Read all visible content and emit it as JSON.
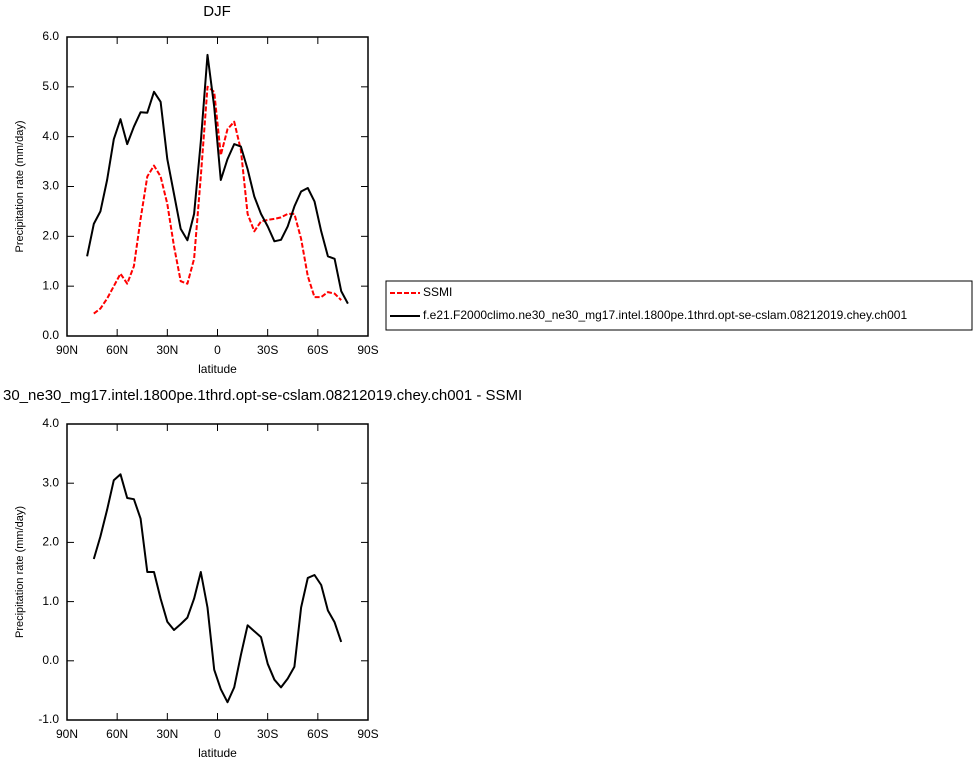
{
  "chart_data": [
    {
      "type": "line",
      "title": "DJF",
      "x_label": "latitude",
      "y_label": "Precipitation rate (mm/day)",
      "x": [
        78,
        74,
        70,
        66,
        62,
        58,
        54,
        50,
        46,
        42,
        38,
        34,
        30,
        26,
        22,
        18,
        14,
        10,
        6,
        2,
        -2,
        -6,
        -10,
        -14,
        -18,
        -22,
        -26,
        -30,
        -34,
        -38,
        -42,
        -46,
        -50,
        -54,
        -58,
        -62,
        -66,
        -70,
        -74,
        -78
      ],
      "series": [
        {
          "name": "SSMI",
          "color": "#ff0000",
          "line_style": "dashed",
          "values": [
            null,
            0.45,
            0.55,
            0.75,
            1.0,
            1.25,
            1.05,
            1.4,
            2.35,
            3.2,
            3.42,
            3.2,
            2.65,
            1.8,
            1.1,
            1.05,
            1.55,
            3.2,
            5.0,
            4.9,
            3.63,
            4.15,
            4.3,
            3.73,
            2.45,
            2.1,
            2.3,
            2.33,
            2.35,
            2.38,
            2.45,
            2.45,
            1.95,
            1.2,
            0.78,
            0.78,
            0.88,
            0.85,
            0.72,
            null
          ]
        },
        {
          "name": "f.e21.F2000climo.ne30_ne30_mg17.intel.1800pe.1thrd.opt-se-cslam.08212019.chey.ch001",
          "color": "#000000",
          "line_style": "solid",
          "values": [
            1.6,
            2.25,
            2.5,
            3.13,
            3.95,
            4.35,
            3.85,
            4.2,
            4.49,
            4.48,
            4.9,
            4.7,
            3.55,
            2.85,
            2.15,
            1.92,
            2.45,
            3.9,
            5.64,
            4.6,
            3.13,
            3.55,
            3.85,
            3.8,
            3.35,
            2.8,
            2.45,
            2.2,
            1.9,
            1.93,
            2.2,
            2.6,
            2.9,
            2.97,
            2.7,
            2.1,
            1.6,
            1.55,
            0.9,
            0.65
          ]
        }
      ],
      "xlim": [
        90,
        -90
      ],
      "xticks": [
        {
          "value": 90,
          "label": "90N"
        },
        {
          "value": 60,
          "label": "60N"
        },
        {
          "value": 30,
          "label": "30N"
        },
        0,
        {
          "value": -30,
          "label": "30S"
        },
        {
          "value": -60,
          "label": "60S"
        },
        {
          "value": -90,
          "label": "90S"
        }
      ],
      "ylim": [
        0,
        6
      ],
      "yticks": [
        {
          "value": 0,
          "label": "0.0"
        },
        {
          "value": 1,
          "label": "1.0"
        },
        {
          "value": 2,
          "label": "2.0"
        },
        {
          "value": 3,
          "label": "3.0"
        },
        {
          "value": 4,
          "label": "4.0"
        },
        {
          "value": 5,
          "label": "5.0"
        },
        {
          "value": 6,
          "label": "6.0"
        }
      ],
      "legend": "right"
    },
    {
      "type": "line",
      "title": "30_ne30_mg17.intel.1800pe.1thrd.opt-se-cslam.08212019.chey.ch001 - SSMI",
      "x_label": "latitude",
      "y_label": "Precipitation rate (mm/day)",
      "x": [
        78,
        74,
        70,
        66,
        62,
        58,
        54,
        50,
        46,
        42,
        38,
        34,
        30,
        26,
        22,
        18,
        14,
        10,
        6,
        2,
        -2,
        -6,
        -10,
        -14,
        -18,
        -22,
        -26,
        -30,
        -34,
        -38,
        -42,
        -46,
        -50,
        -54,
        -58,
        -62,
        -66,
        -70,
        -74,
        -78
      ],
      "color": "#000000",
      "values": [
        null,
        1.72,
        2.1,
        2.55,
        3.05,
        3.15,
        2.75,
        2.73,
        2.4,
        1.5,
        1.5,
        1.05,
        0.66,
        0.52,
        0.62,
        0.73,
        1.05,
        1.5,
        0.9,
        -0.15,
        -0.48,
        -0.7,
        -0.45,
        0.1,
        0.6,
        0.5,
        0.4,
        -0.05,
        -0.32,
        -0.45,
        -0.3,
        -0.1,
        0.9,
        1.4,
        1.45,
        1.28,
        0.85,
        0.65,
        0.32,
        null
      ],
      "xlim": [
        90,
        -90
      ],
      "xticks": [
        {
          "value": 90,
          "label": "90N"
        },
        {
          "value": 60,
          "label": "60N"
        },
        {
          "value": 30,
          "label": "30N"
        },
        0,
        {
          "value": -30,
          "label": "30S"
        },
        {
          "value": -60,
          "label": "60S"
        },
        {
          "value": -90,
          "label": "90S"
        }
      ],
      "ylim": [
        -1,
        4
      ],
      "yticks": [
        {
          "value": -1,
          "label": "-1.0"
        },
        {
          "value": 0,
          "label": "0.0"
        },
        {
          "value": 1,
          "label": "1.0"
        },
        {
          "value": 2,
          "label": "2.0"
        },
        {
          "value": 3,
          "label": "3.0"
        },
        {
          "value": 4,
          "label": "4.0"
        }
      ]
    }
  ]
}
